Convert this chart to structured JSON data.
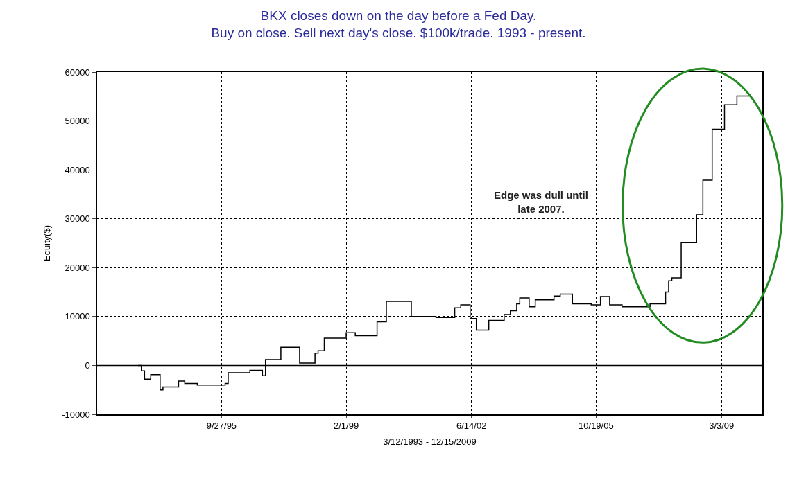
{
  "chart_data": {
    "type": "step",
    "title": "BKX closes down on the day before a Fed Day.\nBuy on close. Sell next day's close. $100k/trade. 1993 - present.",
    "xlabel": "3/12/1993 - 12/15/2009",
    "ylabel": "Equity($)",
    "annotations": [
      "Edge was dull until\nlate 2007."
    ],
    "x": [
      "1993-07",
      "1993-08",
      "1993-09",
      "1993-11",
      "1994-02",
      "1994-03",
      "1994-08",
      "1994-10",
      "1995-02",
      "1995-11",
      "1995-12",
      "1996-07",
      "1996-11",
      "1996-12",
      "1997-05",
      "1997-11",
      "1998-04",
      "1998-05",
      "1998-07",
      "1999-02",
      "1999-05",
      "1999-12",
      "2000-03",
      "2000-11",
      "2001-07",
      "2002-01",
      "2002-03",
      "2002-06",
      "2002-08",
      "2002-12",
      "2003-05",
      "2003-07",
      "2003-09",
      "2003-10",
      "2004-01",
      "2004-03",
      "2004-09",
      "2004-11",
      "2005-03",
      "2005-09",
      "2005-12",
      "2006-03",
      "2006-07",
      "2007-04",
      "2007-09",
      "2007-10",
      "2007-11",
      "2008-02",
      "2008-07",
      "2008-09",
      "2008-12",
      "2009-04",
      "2009-08",
      "2009-12"
    ],
    "series": [
      {
        "color": "#000000",
        "values": [
          0,
          -1100,
          -2800,
          -1900,
          -5000,
          -4400,
          -3200,
          -3700,
          -4000,
          -3700,
          -1500,
          -1000,
          -2100,
          1200,
          3700,
          500,
          2500,
          3000,
          5600,
          6700,
          6100,
          8900,
          13100,
          10000,
          9800,
          11800,
          12400,
          9600,
          7200,
          9200,
          10400,
          11200,
          12600,
          13800,
          12000,
          13400,
          14200,
          14600,
          12600,
          12400,
          14100,
          12400,
          12000,
          12600,
          15000,
          17300,
          17900,
          25100,
          30800,
          37900,
          48300,
          53300,
          55100,
          55100
        ]
      }
    ],
    "xlim": [
      "1992-05-24",
      "2010-04-07"
    ],
    "xticks": [
      {
        "value": "1995-09-27",
        "label": "9/27/95"
      },
      {
        "value": "1999-02-01",
        "label": "2/1/99"
      },
      {
        "value": "2002-06-14",
        "label": "6/14/02"
      },
      {
        "value": "2005-10-19",
        "label": "10/19/05"
      },
      {
        "value": "2009-03-03",
        "label": "3/3/09"
      }
    ],
    "ylim": [
      -10000,
      60000
    ],
    "yticks": [
      -10000,
      0,
      10000,
      20000,
      30000,
      40000,
      50000,
      60000
    ],
    "ref_lines": [
      {
        "axis": "y",
        "value": 0,
        "color": "#000000",
        "line_style": "solid"
      }
    ],
    "grid": true,
    "line_style": "solid",
    "marker": "none"
  }
}
